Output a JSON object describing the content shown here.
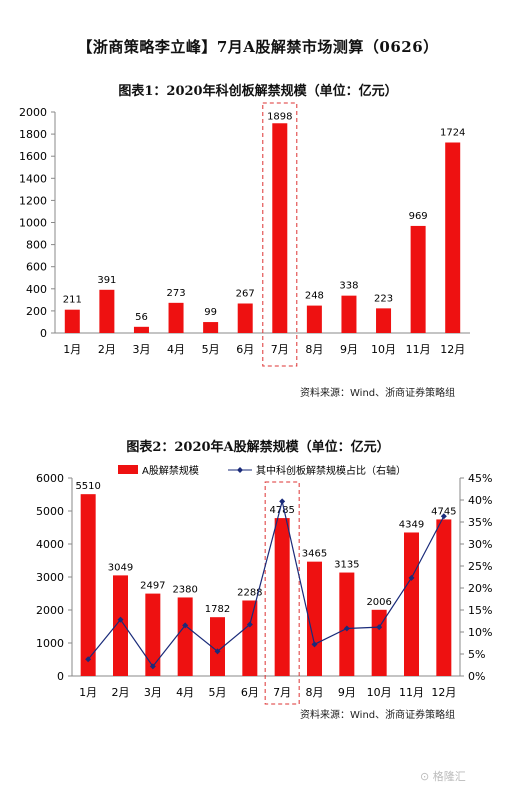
{
  "page": {
    "title": "【浙商策略李立峰】7月A股解禁市场测算（0626）",
    "watermark": "格隆汇"
  },
  "colors": {
    "bar": "#ee1111",
    "line": "#1a2b7a",
    "highlight": "#dd3333"
  },
  "chart_data": [
    {
      "type": "bar",
      "title": "图表1：2020年科创板解禁规模（单位：亿元）",
      "source": "资料来源：Wind、浙商证券策略组",
      "categories": [
        "1月",
        "2月",
        "3月",
        "4月",
        "5月",
        "6月",
        "7月",
        "8月",
        "9月",
        "10月",
        "11月",
        "12月"
      ],
      "values": [
        211,
        391,
        56,
        273,
        99,
        267,
        1898,
        248,
        338,
        223,
        969,
        1724
      ],
      "ylim": [
        0,
        2000
      ],
      "yticks": [
        0,
        200,
        400,
        600,
        800,
        1000,
        1200,
        1400,
        1600,
        1800,
        2000
      ],
      "highlight_category": "7月",
      "grid": false
    },
    {
      "type": "bar",
      "title": "图表2：2020年A股解禁规模（单位：亿元）",
      "source": "资料来源：Wind、浙商证券策略组",
      "categories": [
        "1月",
        "2月",
        "3月",
        "4月",
        "5月",
        "6月",
        "7月",
        "8月",
        "9月",
        "10月",
        "11月",
        "12月"
      ],
      "series": [
        {
          "name": "A股解禁规模",
          "type": "bar",
          "axis": "left",
          "values": [
            5510,
            3049,
            2497,
            2380,
            1782,
            2288,
            4785,
            3465,
            3135,
            2006,
            4349,
            4745
          ]
        },
        {
          "name": "其中科创板解禁规模占比（右轴）",
          "type": "line",
          "axis": "right",
          "values": [
            3.8,
            12.8,
            2.2,
            11.5,
            5.6,
            11.7,
            39.7,
            7.2,
            10.8,
            11.1,
            22.3,
            36.3
          ]
        }
      ],
      "ylim": [
        0,
        6000
      ],
      "yticks": [
        0,
        1000,
        2000,
        3000,
        4000,
        5000,
        6000
      ],
      "y2lim": [
        0,
        45
      ],
      "y2ticks": [
        "0%",
        "5%",
        "10%",
        "15%",
        "20%",
        "25%",
        "30%",
        "35%",
        "40%",
        "45%"
      ],
      "legend_position": "top",
      "highlight_category": "7月",
      "grid": false
    }
  ]
}
